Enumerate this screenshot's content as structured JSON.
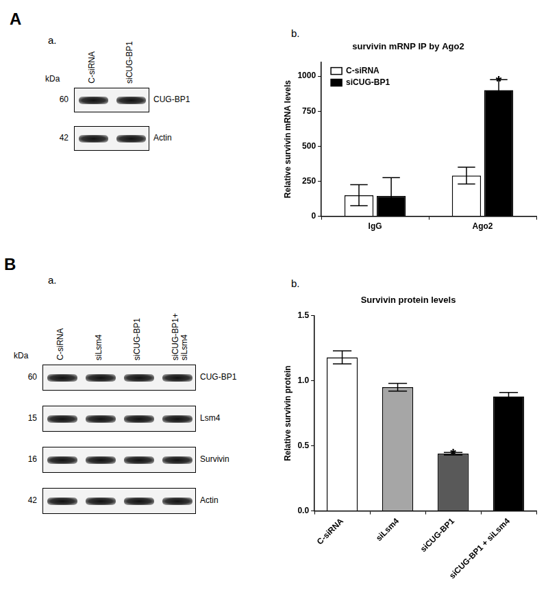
{
  "chart_data": [
    {
      "type": "bar",
      "title": "survivin mRNP IP by Ago2",
      "y_label": "Relative survivin mRNA levels",
      "categories": [
        "IgG",
        "Ago2"
      ],
      "series": [
        {
          "name": "C-siRNA",
          "color": "#ffffff",
          "values": [
            150,
            290
          ],
          "errors": [
            75,
            60
          ]
        },
        {
          "name": "siCUG-BP1",
          "color": "#000000",
          "values": [
            145,
            900
          ],
          "errors": [
            130,
            75
          ]
        }
      ],
      "ylim": [
        0,
        1100
      ],
      "yticks": [
        0,
        250,
        500,
        750,
        1000
      ],
      "grid": false,
      "legend": "top-left",
      "annotations": [
        {
          "text": "*",
          "category": "Ago2",
          "series": "siCUG-BP1"
        }
      ]
    },
    {
      "type": "bar",
      "title": "Survivin protein levels",
      "y_label": "Relative survivin protein",
      "categories": [
        "C-siRNA",
        "siLsm4",
        "siCUG-BP1",
        "siCUG-BP1 + siLsm4"
      ],
      "values": [
        1.18,
        0.95,
        0.44,
        0.88
      ],
      "errors": [
        0.05,
        0.03,
        0.01,
        0.03
      ],
      "colors": [
        "#ffffff",
        "#a6a6a6",
        "#595959",
        "#000000"
      ],
      "ylim": [
        0,
        1.5
      ],
      "yticks": [
        {
          "value": 0,
          "label": "0.0"
        },
        0.5,
        {
          "value": 1,
          "label": "1.0"
        },
        1.5
      ],
      "grid": false,
      "annotations": [
        {
          "text": "*",
          "category": "siCUG-BP1"
        }
      ]
    }
  ],
  "panels": [
    {
      "label": "A",
      "blot_label": "a.",
      "chart_label": "b.",
      "blot": {
        "unit": "kDa",
        "lanes": [
          "C-siRNA",
          "siCUG-BP1"
        ],
        "rows": [
          {
            "kda": 60,
            "protein": "CUG-BP1"
          },
          {
            "kda": 42,
            "protein": "Actin"
          }
        ]
      }
    },
    {
      "label": "B",
      "blot_label": "a.",
      "chart_label": "b.",
      "blot": {
        "unit": "kDa",
        "lanes": [
          "C-siRNA",
          "siLsm4",
          "siCUG-BP1",
          "siCUG-BP1+ siLsm4"
        ],
        "rows": [
          {
            "kda": 60,
            "protein": "CUG-BP1"
          },
          {
            "kda": 15,
            "protein": "Lsm4"
          },
          {
            "kda": 16,
            "protein": "Survivin"
          },
          {
            "kda": 42,
            "protein": "Actin"
          }
        ]
      }
    }
  ]
}
